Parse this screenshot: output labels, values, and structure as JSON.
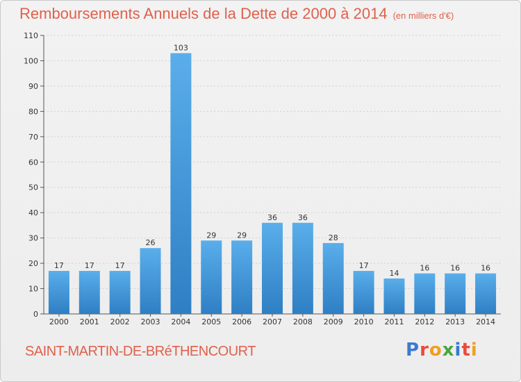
{
  "header": {
    "title": "Remboursements Annuels de la Dette de 2000 à 2014",
    "unit": "(en milliers d'€)"
  },
  "footer": {
    "commune": "SAINT-MARTIN-DE-BRéTHENCOURT",
    "logo": "Proxiti"
  },
  "colors": {
    "title": "#e0604b",
    "bar_top": "#5aaeea",
    "bar_bottom": "#2e7fc4",
    "grid": "#d0d0d0"
  },
  "chart_data": {
    "type": "bar",
    "title": "Remboursements Annuels de la Dette de 2000 à 2014",
    "xlabel": "",
    "ylabel": "",
    "ylim": [
      0,
      110
    ],
    "yticks": [
      0,
      10,
      20,
      30,
      40,
      50,
      60,
      70,
      80,
      90,
      100,
      110
    ],
    "grid": true,
    "categories": [
      "2000",
      "2001",
      "2002",
      "2003",
      "2004",
      "2005",
      "2006",
      "2007",
      "2008",
      "2009",
      "2010",
      "2011",
      "2012",
      "2013",
      "2014"
    ],
    "values": [
      17,
      17,
      17,
      26,
      103,
      29,
      29,
      36,
      36,
      28,
      17,
      14,
      16,
      16,
      16
    ]
  }
}
